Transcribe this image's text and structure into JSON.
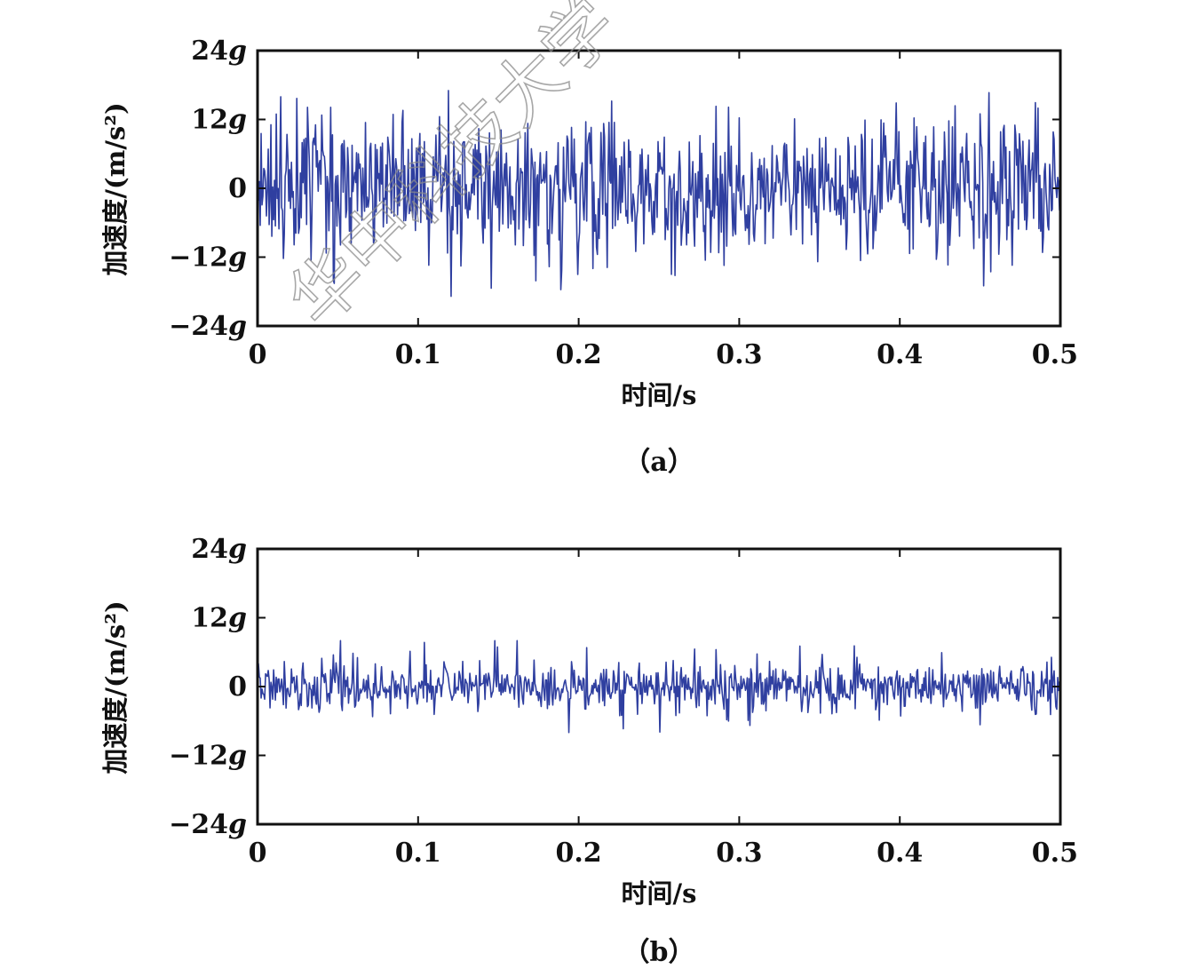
{
  "watermark": "华中科技大学",
  "chart_data": [
    {
      "type": "line",
      "panel": "(a)",
      "caption": "（a）",
      "xlabel": "时间/s",
      "ylabel": "加速度/(m/s²)",
      "xlim": [
        0,
        0.5
      ],
      "ylim": [
        -24,
        24
      ],
      "y_unit": "g",
      "xticks": [
        0,
        0.1,
        0.2,
        0.3,
        0.4,
        0.5
      ],
      "xtick_labels": [
        "0",
        "0.1",
        "0.2",
        "0.3",
        "0.4",
        "0.5"
      ],
      "yticks": [
        24,
        12,
        0,
        -12,
        -24
      ],
      "ytick_labels": [
        "24g",
        "12g",
        "0",
        "−12g",
        "−24g"
      ],
      "grid": false,
      "color": "#2f3fa0",
      "signal": {
        "description_values": "dense broadband random vibration",
        "samples": 900,
        "typical_amplitude": 12,
        "peak_max": 22,
        "peak_min": -22,
        "envelope_x": [
          0,
          0.05,
          0.1,
          0.15,
          0.2,
          0.25,
          0.3,
          0.35,
          0.4,
          0.45,
          0.5
        ],
        "envelope_upper": [
          19,
          19,
          17,
          18,
          16,
          15,
          14,
          17,
          15,
          17,
          14
        ],
        "envelope_lower": [
          -17,
          -20,
          -18,
          -20,
          -17,
          -15,
          -16,
          -15,
          -18,
          -17,
          -17
        ]
      }
    },
    {
      "type": "line",
      "panel": "(b)",
      "caption": "（b）",
      "xlabel": "时间/s",
      "ylabel": "加速度/(m/s²)",
      "xlim": [
        0,
        0.5
      ],
      "ylim": [
        -24,
        24
      ],
      "y_unit": "g",
      "xticks": [
        0,
        0.1,
        0.2,
        0.3,
        0.4,
        0.5
      ],
      "xtick_labels": [
        "0",
        "0.1",
        "0.2",
        "0.3",
        "0.4",
        "0.5"
      ],
      "yticks": [
        24,
        12,
        0,
        -12,
        -24
      ],
      "ytick_labels": [
        "24g",
        "12g",
        "0",
        "−12g",
        "−24g"
      ],
      "grid": false,
      "color": "#2f3fa0",
      "signal": {
        "samples": 900,
        "typical_amplitude": 5,
        "peak_max": 8.5,
        "peak_min": -8.5,
        "periodic_bursts": 45,
        "envelope_x": [
          0,
          0.1,
          0.2,
          0.3,
          0.4,
          0.5
        ],
        "envelope_upper": [
          8,
          8,
          8,
          8,
          8,
          8
        ],
        "envelope_lower": [
          -8,
          -8,
          -8,
          -8,
          -8,
          -8
        ]
      }
    }
  ]
}
